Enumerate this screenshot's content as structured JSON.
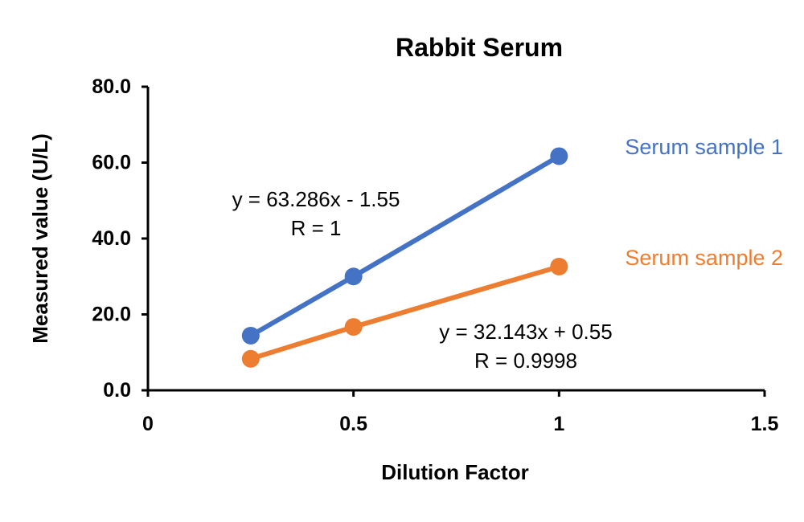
{
  "chart_data": {
    "type": "line",
    "title": "Rabbit Serum",
    "xlabel": "Dilution Factor",
    "ylabel": "Measured value (U/L)",
    "xlim": [
      0,
      1.5
    ],
    "ylim": [
      0,
      80
    ],
    "x_ticks": [
      {
        "value": 0,
        "label": "0"
      },
      {
        "value": 0.5,
        "label": "0.5"
      },
      {
        "value": 1,
        "label": "1"
      },
      {
        "value": 1.5,
        "label": "1.5"
      }
    ],
    "y_ticks": [
      {
        "value": 0,
        "label": "0.0"
      },
      {
        "value": 20,
        "label": "20.0"
      },
      {
        "value": 40,
        "label": "40.0"
      },
      {
        "value": 60,
        "label": "60.0"
      },
      {
        "value": 80,
        "label": "80.0"
      }
    ],
    "grid": false,
    "series": [
      {
        "name": "Serum sample 1",
        "color": "#4472C4",
        "x": [
          0.25,
          0.5,
          1
        ],
        "y": [
          14.4,
          30.0,
          61.7
        ],
        "equation": "y = 63.286x - 1.55",
        "r_value": "R = 1"
      },
      {
        "name": "Serum sample 2",
        "color": "#ED7D31",
        "x": [
          0.25,
          0.5,
          1
        ],
        "y": [
          8.3,
          16.7,
          32.6
        ],
        "equation": "y = 32.143x + 0.55",
        "r_value": "R = 0.9998"
      }
    ]
  }
}
